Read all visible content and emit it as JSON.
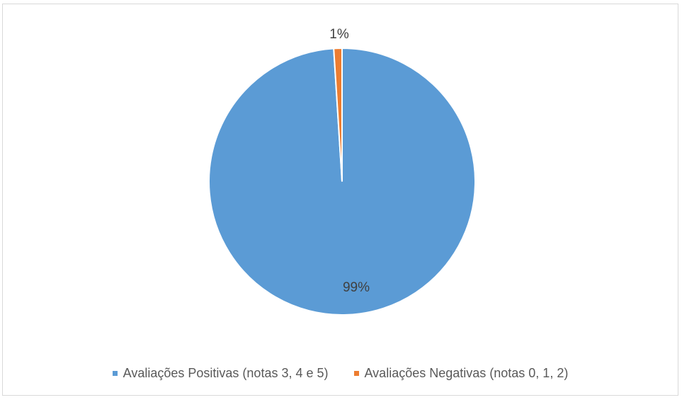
{
  "chart_data": {
    "type": "pie",
    "title": "",
    "slices": [
      {
        "label": "Avaliações Positivas (notas 3, 4 e 5)",
        "value": 99,
        "data_label": "99%",
        "color": "#5b9bd5"
      },
      {
        "label": "Avaliações Negativas (notas 0, 1, 2)",
        "value": 1,
        "data_label": "1%",
        "color": "#ed7d31"
      }
    ],
    "legend_position": "bottom"
  }
}
